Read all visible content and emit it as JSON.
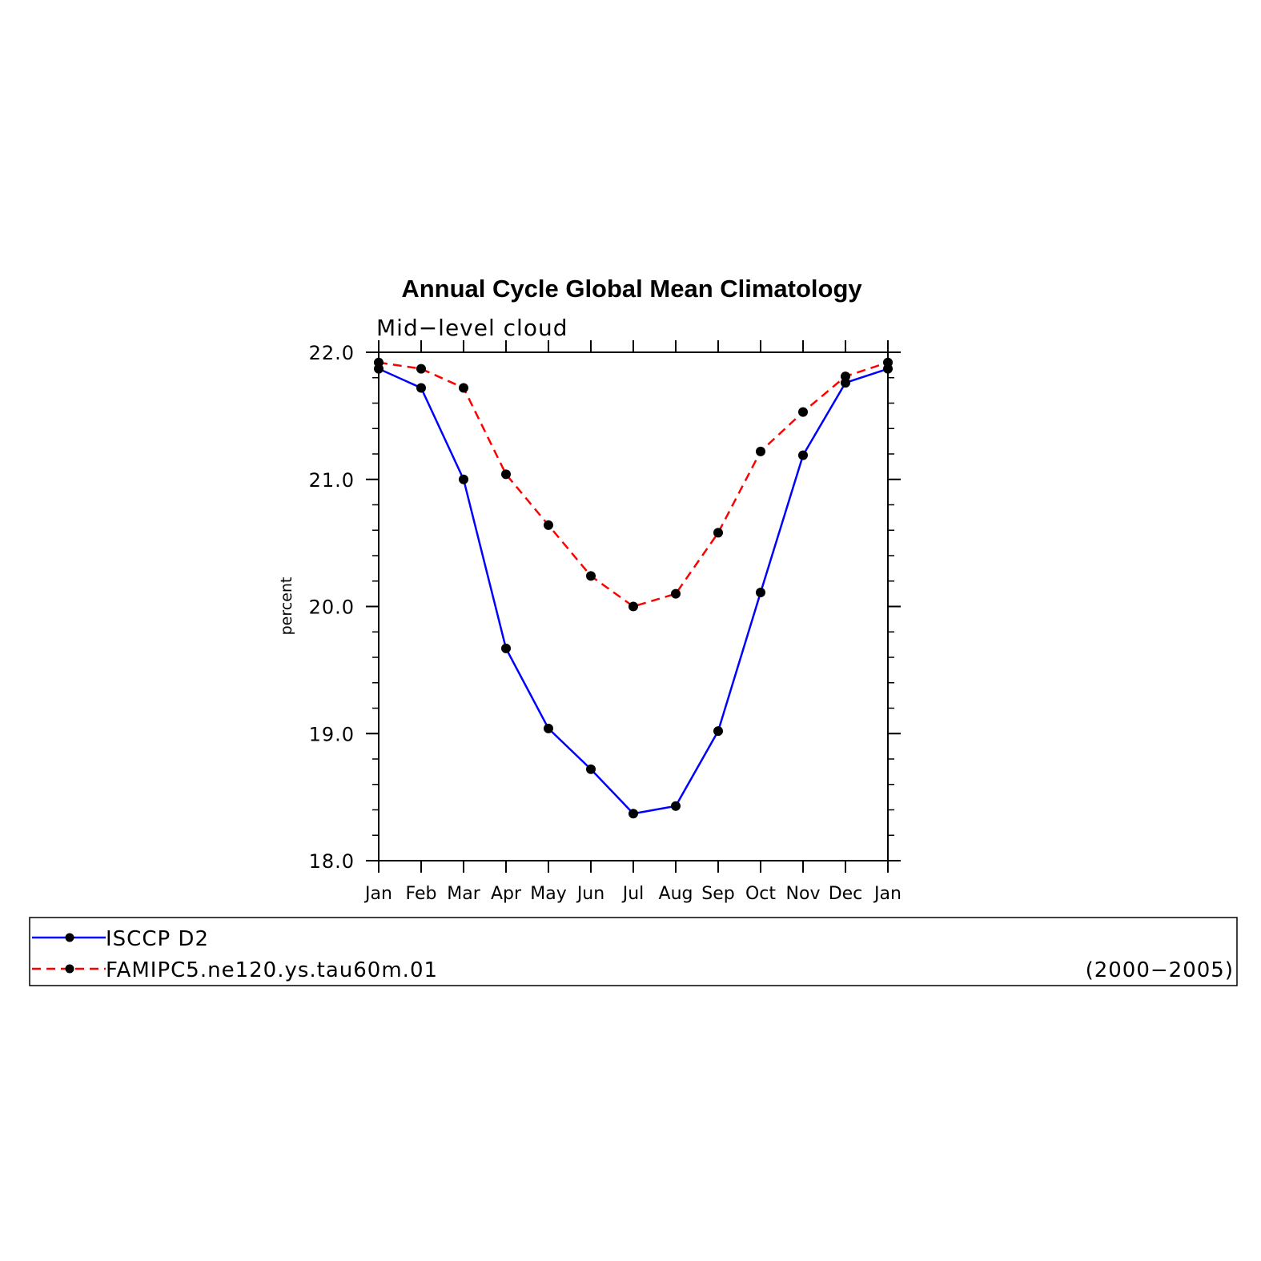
{
  "chart_data": {
    "type": "line",
    "title": "Annual Cycle Global Mean Climatology",
    "subtitle": "Mid−level cloud",
    "ylabel": "percent",
    "xlabel": "",
    "categories": [
      "Jan",
      "Feb",
      "Mar",
      "Apr",
      "May",
      "Jun",
      "Jul",
      "Aug",
      "Sep",
      "Oct",
      "Nov",
      "Dec",
      "Jan"
    ],
    "ylim": [
      18.0,
      22.0
    ],
    "yticks": [
      18.0,
      19.0,
      20.0,
      21.0,
      22.0
    ],
    "ytick_labels": [
      "18.0",
      "19.0",
      "20.0",
      "21.0",
      "22.0"
    ],
    "grid": false,
    "legend_position": "bottom",
    "series": [
      {
        "name": "ISCCP D2",
        "color": "#0000ff",
        "dash": "solid",
        "marker_color": "#000000",
        "values": [
          21.87,
          21.72,
          21.0,
          19.67,
          19.04,
          18.72,
          18.37,
          18.43,
          19.02,
          20.11,
          21.19,
          21.76,
          21.87
        ]
      },
      {
        "name": "FAMIPC5.ne120.ys.tau60m.01",
        "color": "#ff0000",
        "dash": "dashed",
        "marker_color": "#000000",
        "values": [
          21.92,
          21.87,
          21.72,
          21.04,
          20.64,
          20.24,
          20.0,
          20.1,
          20.58,
          21.22,
          21.53,
          21.81,
          21.92
        ]
      }
    ],
    "legend_note": "(2000−2005)"
  }
}
